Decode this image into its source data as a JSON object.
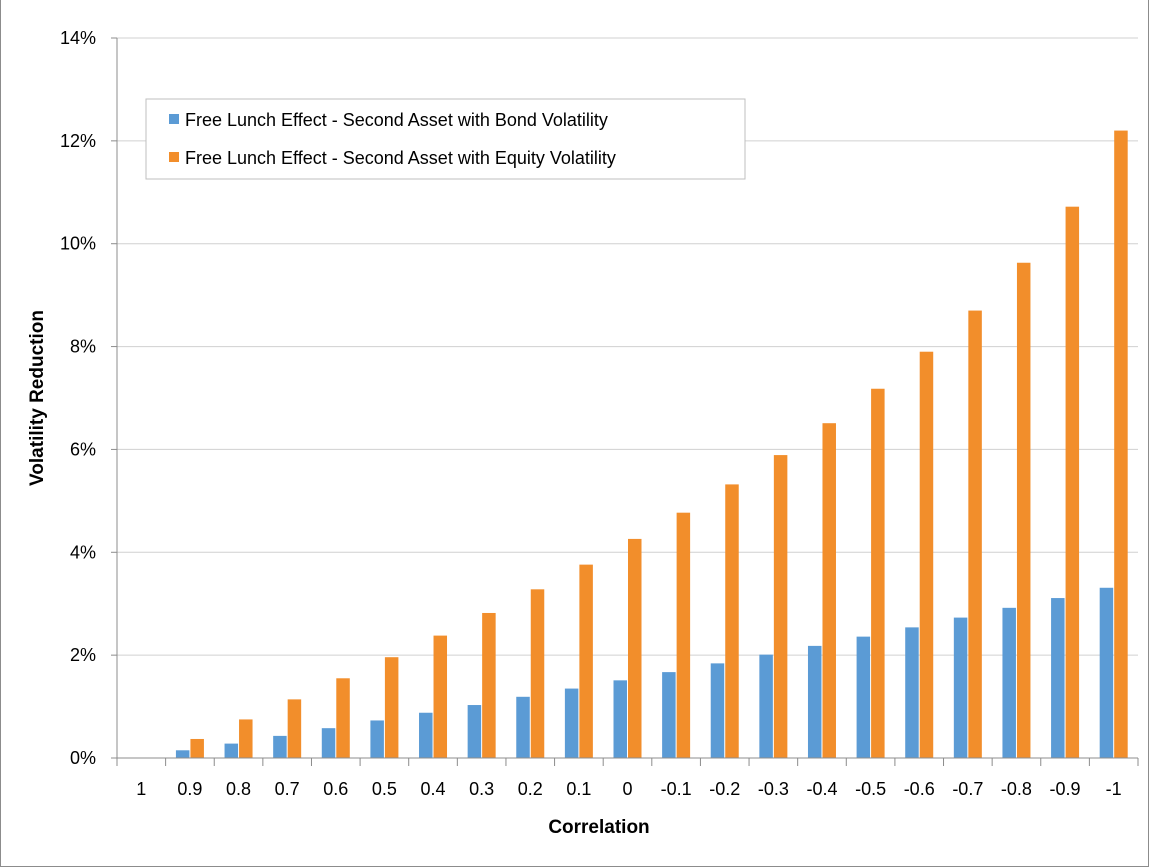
{
  "chart_data": {
    "type": "bar",
    "title": "",
    "xlabel": "Correlation",
    "ylabel": "Volatility Reduction",
    "categories": [
      "1",
      "0.9",
      "0.8",
      "0.7",
      "0.6",
      "0.5",
      "0.4",
      "0.3",
      "0.2",
      "0.1",
      "0",
      "-0.1",
      "-0.2",
      "-0.3",
      "-0.4",
      "-0.5",
      "-0.6",
      "-0.7",
      "-0.8",
      "-0.9",
      "-1"
    ],
    "series": [
      {
        "name": "Free Lunch Effect - Second Asset with Bond Volatility",
        "color": "#5b9bd5",
        "values": [
          0.0,
          0.15,
          0.28,
          0.43,
          0.58,
          0.73,
          0.88,
          1.03,
          1.19,
          1.35,
          1.51,
          1.67,
          1.84,
          2.01,
          2.18,
          2.36,
          2.54,
          2.73,
          2.92,
          3.11,
          3.31
        ]
      },
      {
        "name": "Free Lunch Effect - Second Asset with Equity Volatility",
        "color": "#f28e2b",
        "values": [
          0.0,
          0.37,
          0.75,
          1.14,
          1.55,
          1.96,
          2.38,
          2.82,
          3.28,
          3.76,
          4.26,
          4.77,
          5.32,
          5.89,
          6.51,
          7.18,
          7.9,
          8.7,
          9.63,
          10.72,
          12.2
        ]
      }
    ],
    "yticks": [
      "0%",
      "2%",
      "4%",
      "6%",
      "8%",
      "10%",
      "12%",
      "14%"
    ],
    "ylim": [
      0,
      14
    ],
    "grid": true,
    "legend": "top-left"
  }
}
